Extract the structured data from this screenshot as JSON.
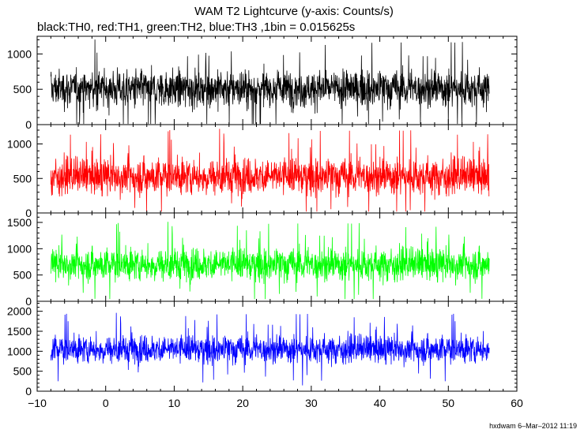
{
  "chart_data": {
    "type": "line",
    "title": "WAM T2 Lightcurve (y-axis: Counts/s)",
    "subtitle": "black:TH0, red:TH1, green:TH2, blue:TH3 ,1bin = 0.015625s",
    "xlabel": "",
    "xlim": [
      -10,
      60
    ],
    "x_ticks": [
      -10,
      0,
      10,
      20,
      30,
      40,
      50,
      60
    ],
    "x_tick_labels": [
      "−10",
      "0",
      "10",
      "20",
      "30",
      "40",
      "50",
      "60"
    ],
    "x_range": [
      -8,
      56
    ],
    "bin_seconds": 0.015625,
    "grid": false,
    "series": [
      {
        "name": "TH0",
        "color": "#000000",
        "ylim": [
          0,
          1250
        ],
        "y_ticks": [
          0,
          500,
          1000
        ],
        "mean": 510,
        "typical_low": 200,
        "typical_high": 870,
        "min": 10,
        "max": 1250
      },
      {
        "name": "TH1",
        "color": "#ff0000",
        "ylim": [
          0,
          1280
        ],
        "y_ticks": [
          0,
          500,
          1000
        ],
        "mean": 530,
        "typical_low": 220,
        "typical_high": 900,
        "min": 20,
        "max": 1280
      },
      {
        "name": "TH2",
        "color": "#00ff00",
        "ylim": [
          0,
          1680
        ],
        "y_ticks": [
          0,
          500,
          1000,
          1500
        ],
        "mean": 700,
        "typical_low": 350,
        "typical_high": 1150,
        "min": 40,
        "max": 1650
      },
      {
        "name": "TH3",
        "color": "#0000ff",
        "ylim": [
          0,
          2250
        ],
        "y_ticks": [
          0,
          500,
          1000,
          1500,
          2000
        ],
        "mean": 1050,
        "typical_low": 600,
        "typical_high": 1500,
        "min": 100,
        "max": 2200
      }
    ]
  },
  "footer": "hxdwam  6–Mar–2012 11:19"
}
